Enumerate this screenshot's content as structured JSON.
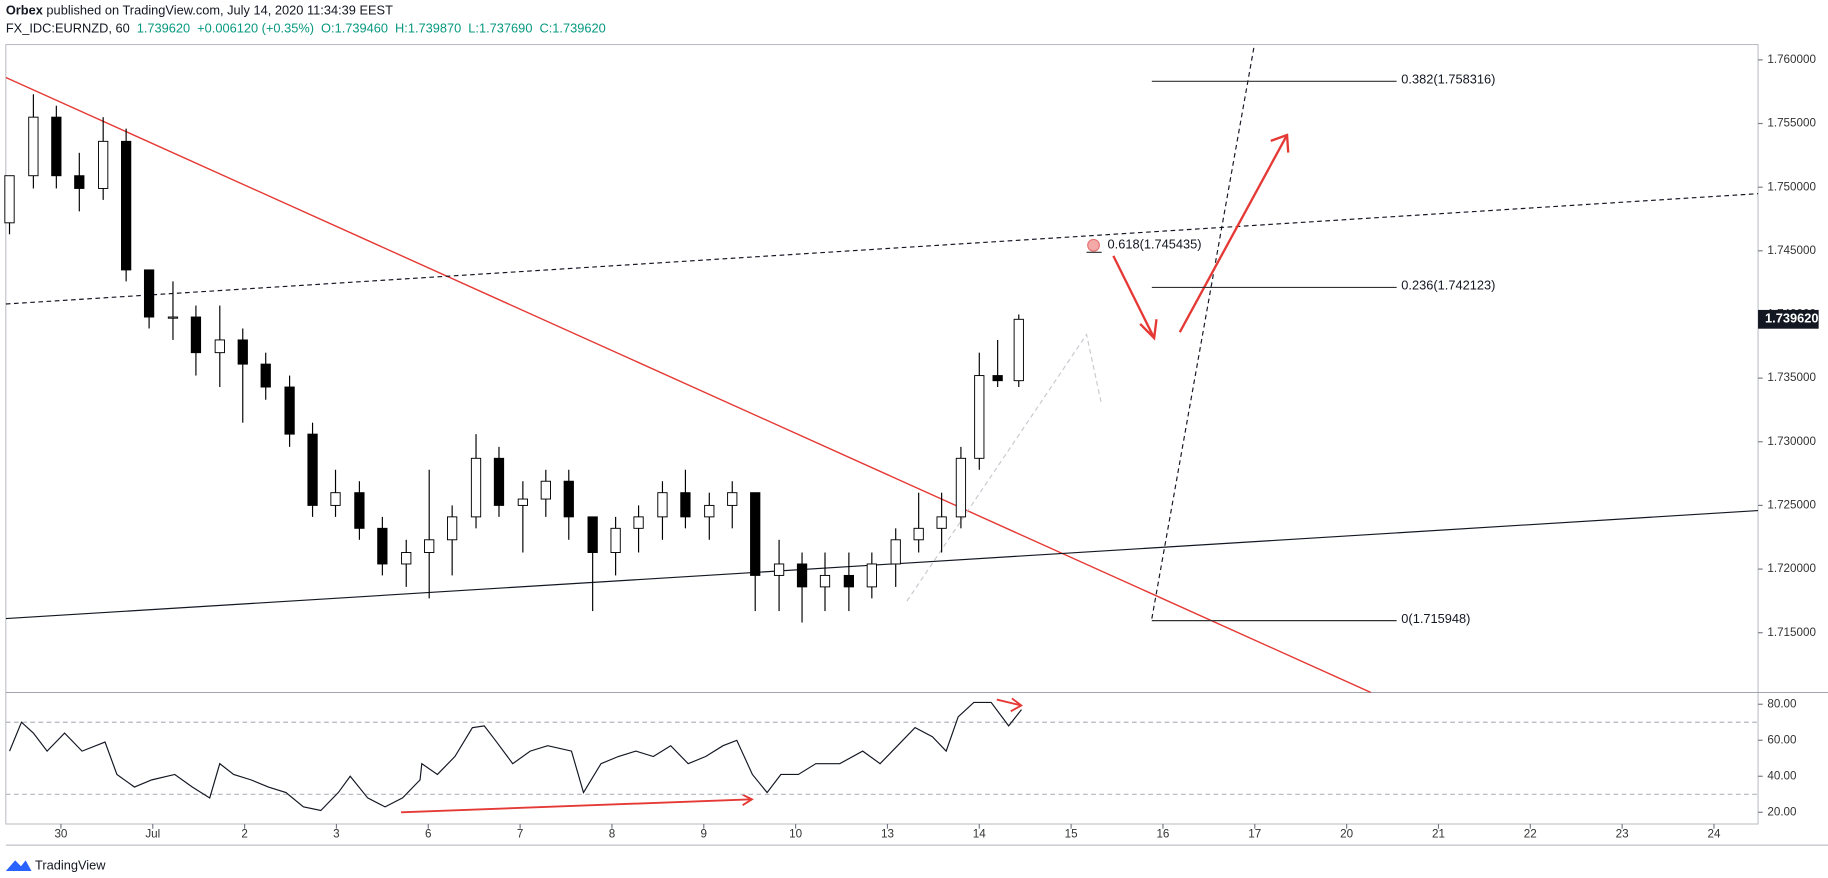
{
  "header": {
    "author": "Orbex",
    "published": "published on TradingView.com, July 14, 2020 11:34:39 EEST"
  },
  "footer": {
    "brand": "TradingView"
  },
  "chart_data": [
    {
      "type": "candlestick",
      "title": "FX_IDC:EURNZD, 60",
      "quote": [
        "1.739620",
        "+0.006120 (+0.35%)",
        "O:1.739460",
        "H:1.739870",
        "L:1.737690",
        "C:1.739620"
      ],
      "quote_color": "#089981",
      "x": [
        -0.56,
        -0.3,
        -0.05,
        0.2,
        0.46,
        0.71,
        0.96,
        1.22,
        1.47,
        1.73,
        1.98,
        2.23,
        2.49,
        2.74,
        2.99,
        3.25,
        3.5,
        3.76,
        4.01,
        4.26,
        4.52,
        4.77,
        5.03,
        5.28,
        5.53,
        5.79,
        6.04,
        6.29,
        6.55,
        6.8,
        7.06,
        7.31,
        7.56,
        7.82,
        8.07,
        8.32,
        8.58,
        8.83,
        9.09,
        9.34,
        9.59,
        9.8,
        10.0,
        10.2,
        10.43
      ],
      "open": [
        1.7472,
        1.7509,
        1.7555,
        1.7509,
        1.7499,
        1.7536,
        1.7435,
        1.7398,
        1.7398,
        1.737,
        1.738,
        1.7361,
        1.7343,
        1.7306,
        1.725,
        1.726,
        1.7232,
        1.7204,
        1.7213,
        1.7223,
        1.7241,
        1.7287,
        1.725,
        1.7255,
        1.7269,
        1.7241,
        1.7213,
        1.7232,
        1.7241,
        1.726,
        1.7241,
        1.725,
        1.726,
        1.7195,
        1.7204,
        1.7186,
        1.7195,
        1.7186,
        1.7204,
        1.7223,
        1.7232,
        1.7241,
        1.7287,
        1.7352,
        1.7348
      ],
      "high": [
        1.7509,
        1.7573,
        1.7564,
        1.7527,
        1.7555,
        1.7546,
        1.7435,
        1.7426,
        1.7407,
        1.7407,
        1.7389,
        1.737,
        1.7352,
        1.7315,
        1.7278,
        1.7269,
        1.7241,
        1.7223,
        1.7278,
        1.725,
        1.7306,
        1.7296,
        1.7269,
        1.7278,
        1.7278,
        1.7241,
        1.7241,
        1.725,
        1.7269,
        1.7278,
        1.726,
        1.7269,
        1.726,
        1.7223,
        1.7213,
        1.7213,
        1.7213,
        1.7213,
        1.7232,
        1.726,
        1.726,
        1.7296,
        1.737,
        1.738,
        1.74
      ],
      "low": [
        1.7463,
        1.7499,
        1.7499,
        1.7481,
        1.749,
        1.7426,
        1.7389,
        1.738,
        1.7352,
        1.7343,
        1.7315,
        1.7333,
        1.7296,
        1.7241,
        1.7241,
        1.7223,
        1.7195,
        1.7186,
        1.7177,
        1.7195,
        1.7232,
        1.7241,
        1.7213,
        1.7241,
        1.7223,
        1.7167,
        1.7195,
        1.7213,
        1.7223,
        1.7232,
        1.7223,
        1.7232,
        1.7167,
        1.7167,
        1.7158,
        1.7167,
        1.7167,
        1.7177,
        1.7186,
        1.7213,
        1.7213,
        1.7232,
        1.7278,
        1.7343,
        1.7343
      ],
      "close": [
        1.7509,
        1.7555,
        1.7509,
        1.7499,
        1.7536,
        1.7435,
        1.7398,
        1.7398,
        1.737,
        1.738,
        1.7361,
        1.7343,
        1.7306,
        1.725,
        1.726,
        1.7232,
        1.7204,
        1.7213,
        1.7223,
        1.7241,
        1.7287,
        1.725,
        1.7255,
        1.7269,
        1.7241,
        1.7213,
        1.7232,
        1.7241,
        1.726,
        1.7241,
        1.725,
        1.726,
        1.7195,
        1.7204,
        1.7186,
        1.7195,
        1.7186,
        1.7204,
        1.7223,
        1.7232,
        1.7241,
        1.7287,
        1.7352,
        1.7348,
        1.73962
      ],
      "up_color": "#ffffff",
      "down_color": "#000000",
      "border_color": "#000000",
      "xlim": [
        -0.6,
        18.48
      ],
      "xticks": [
        {
          "value": 0,
          "label": "30"
        },
        {
          "value": 1,
          "label": "Jul"
        },
        2,
        3,
        {
          "value": 4,
          "label": "6"
        },
        {
          "value": 5,
          "label": "7"
        },
        {
          "value": 6,
          "label": "8"
        },
        {
          "value": 7,
          "label": "9"
        },
        {
          "value": 8,
          "label": "10"
        },
        {
          "value": 9,
          "label": "13"
        },
        {
          "value": 10,
          "label": "14"
        },
        {
          "value": 11,
          "label": "15"
        },
        {
          "value": 12,
          "label": "16"
        },
        {
          "value": 13,
          "label": "17"
        },
        {
          "value": 14,
          "label": "20"
        },
        {
          "value": 15,
          "label": "21"
        },
        {
          "value": 16,
          "label": "22"
        },
        {
          "value": 17,
          "label": "23"
        },
        {
          "value": 18,
          "label": "24"
        }
      ],
      "ylim": [
        1.7103,
        1.7612
      ],
      "yticks": [
        {
          "value": 1.715,
          "label": "1.715000"
        },
        {
          "value": 1.72,
          "label": "1.720000"
        },
        {
          "value": 1.725,
          "label": "1.725000"
        },
        {
          "value": 1.73,
          "label": "1.730000"
        },
        {
          "value": 1.735,
          "label": "1.735000"
        },
        {
          "value": 1.74,
          "label": "1.740000"
        },
        {
          "value": 1.745,
          "label": "1.745000"
        },
        {
          "value": 1.75,
          "label": "1.750000"
        },
        {
          "value": 1.755,
          "label": "1.755000"
        },
        {
          "value": 1.76,
          "label": "1.760000"
        }
      ],
      "last_price": {
        "value": 1.73962,
        "label": "1.739620"
      },
      "fib_levels": [
        {
          "label": "0.382(1.758316)",
          "value": 1.758316
        },
        {
          "label": "0.236(1.742123)",
          "value": 1.742123
        },
        {
          "label": "0(1.715948)",
          "value": 1.715948
        }
      ],
      "fib_point": {
        "label": "0.618(1.745435)",
        "value": 1.745435
      }
    },
    {
      "type": "line",
      "color": "#131722",
      "x": [
        -0.56,
        -0.43,
        -0.3,
        -0.15,
        0.04,
        0.23,
        0.48,
        0.61,
        0.8,
        0.99,
        1.24,
        1.43,
        1.62,
        1.73,
        1.88,
        2.07,
        2.26,
        2.45,
        2.64,
        2.83,
        3.02,
        3.15,
        3.34,
        3.53,
        3.72,
        3.91,
        3.93,
        4.1,
        4.29,
        4.48,
        4.61,
        4.73,
        4.92,
        5.11,
        5.3,
        5.56,
        5.69,
        5.88,
        6.07,
        6.26,
        6.45,
        6.64,
        6.83,
        7.02,
        7.21,
        7.36,
        7.53,
        7.69,
        7.84,
        8.03,
        8.22,
        8.48,
        8.73,
        8.92,
        9.11,
        9.3,
        9.49,
        9.64,
        9.77,
        9.94,
        10.13,
        10.32,
        10.46
      ],
      "values": [
        54,
        70,
        64,
        54,
        64,
        54,
        59,
        41,
        34,
        38,
        41,
        34,
        28,
        47,
        41,
        38,
        34,
        31,
        23,
        21,
        31,
        40,
        28,
        23,
        28,
        38,
        47,
        41,
        51,
        67,
        68,
        60,
        47,
        54,
        57,
        54,
        31,
        47,
        51,
        54,
        51,
        57,
        47,
        51,
        57,
        60,
        41,
        31,
        41,
        41,
        47,
        47,
        54,
        47,
        57,
        67,
        62,
        54,
        73,
        81,
        81,
        68,
        77
      ],
      "xlim": [
        -0.6,
        18.48
      ],
      "ylim": [
        13.5,
        86.5
      ],
      "yticks": [
        {
          "value": 20,
          "label": "20.00"
        },
        {
          "value": 40,
          "label": "40.00"
        },
        {
          "value": 60,
          "label": "60.00"
        },
        {
          "value": 80,
          "label": "80.00"
        }
      ],
      "levels": [
        70,
        30
      ]
    }
  ]
}
